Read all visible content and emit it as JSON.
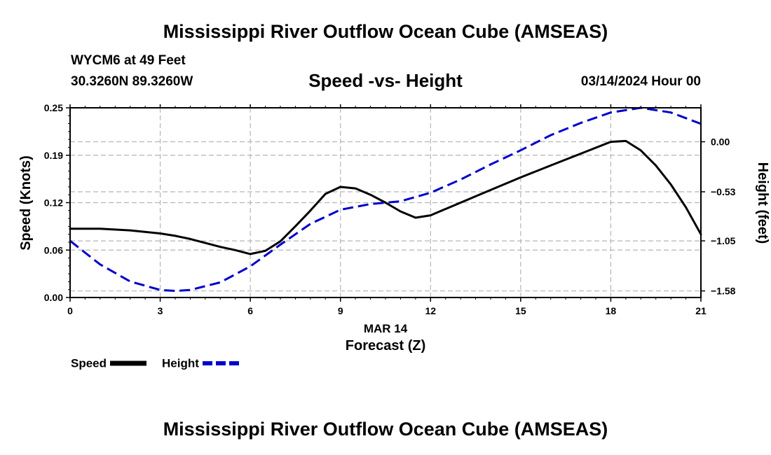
{
  "page": {
    "title": "Mississippi River Outflow Ocean Cube (AMSEAS)",
    "bottom_title": "Mississippi River Outflow Ocean Cube (AMSEAS)",
    "station": "WYCM6 at 49 Feet",
    "coords": "30.3260N  89.3260W",
    "subtitle": "Speed -vs- Height",
    "datetime": "03/14/2024 Hour 00"
  },
  "legend": {
    "speed_label": "Speed",
    "height_label": "Height"
  },
  "chart_data": {
    "type": "line",
    "title": "Speed -vs- Height",
    "xlabel": "Forecast (Z)",
    "xdate_label": "MAR 14",
    "ylabel": "Speed (Knots)",
    "y2label": "Height (feet)",
    "xlim": [
      0,
      21
    ],
    "ylim": [
      0,
      0.25
    ],
    "y2lim": [
      -1.65,
      0.36
    ],
    "x_ticks": [
      0,
      3,
      6,
      9,
      12,
      15,
      18,
      21
    ],
    "x_tick_labels": [
      "0",
      "3",
      "6",
      "9",
      "12",
      "15",
      "18",
      "21"
    ],
    "y_ticks": [
      0,
      0.0625,
      0.125,
      0.1875,
      0.25
    ],
    "y_tick_labels": [
      "0.00",
      "0.06",
      "0.12",
      "0.19",
      "0.25"
    ],
    "y2_ticks": [
      0.0,
      -0.53,
      -1.05,
      -1.58
    ],
    "y2_tick_labels": [
      "0.00",
      "−0.53",
      "−1.05",
      "−1.58"
    ],
    "grid": true,
    "series": [
      {
        "name": "Speed",
        "axis": "left",
        "color": "#000000",
        "dash": "solid",
        "x": [
          0,
          1,
          2,
          3,
          3.5,
          4,
          4.5,
          5,
          5.5,
          6,
          6.5,
          7,
          7.5,
          8,
          8.5,
          9,
          9.5,
          10,
          10.5,
          11,
          11.5,
          12,
          13,
          14,
          15,
          16,
          17,
          18,
          18.5,
          19,
          19.5,
          20,
          20.5,
          21
        ],
        "y": [
          0.0906,
          0.0906,
          0.0885,
          0.0844,
          0.0813,
          0.0771,
          0.0719,
          0.0667,
          0.0625,
          0.0573,
          0.0615,
          0.074,
          0.0938,
          0.1146,
          0.1365,
          0.1458,
          0.1438,
          0.1354,
          0.125,
          0.1135,
          0.1052,
          0.1083,
          0.125,
          0.1417,
          0.1583,
          0.174,
          0.1896,
          0.2052,
          0.2063,
          0.1938,
          0.174,
          0.149,
          0.1188,
          0.0833
        ]
      },
      {
        "name": "Height",
        "axis": "right",
        "color": "#0000cc",
        "dash": "dashed",
        "x": [
          0,
          1,
          2,
          3,
          3.5,
          4,
          5,
          6,
          7,
          8,
          9,
          10,
          11,
          12,
          13,
          14,
          15,
          16,
          17,
          18,
          19,
          20,
          21
        ],
        "y": [
          -1.05,
          -1.3,
          -1.48,
          -1.57,
          -1.58,
          -1.57,
          -1.49,
          -1.32,
          -1.09,
          -0.87,
          -0.72,
          -0.66,
          -0.63,
          -0.54,
          -0.4,
          -0.24,
          -0.09,
          0.07,
          0.2,
          0.31,
          0.36,
          0.31,
          0.19
        ]
      }
    ]
  }
}
